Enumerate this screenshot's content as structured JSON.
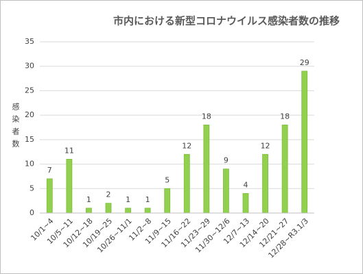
{
  "chart_data": {
    "type": "bar",
    "title": "市内における新型コロナウイルス感染者数の推移",
    "y_label": "感染者数",
    "categories": [
      "10/1~4",
      "10/5~11",
      "10/12~18",
      "10/19~25",
      "10/26~11/1",
      "11/2~8",
      "11/9~15",
      "11/16~22",
      "11/23~29",
      "11/30~12/6",
      "12/7~13",
      "12/14~20",
      "12/21~27",
      "12/28~R3.1/3"
    ],
    "values": [
      7,
      11,
      1,
      2,
      1,
      1,
      5,
      12,
      18,
      9,
      4,
      12,
      18,
      29
    ],
    "color": "#92d050",
    "ylim": [
      0,
      35
    ],
    "yticks": [
      0,
      5,
      10,
      15,
      20,
      25,
      30,
      35
    ],
    "grid": true
  }
}
